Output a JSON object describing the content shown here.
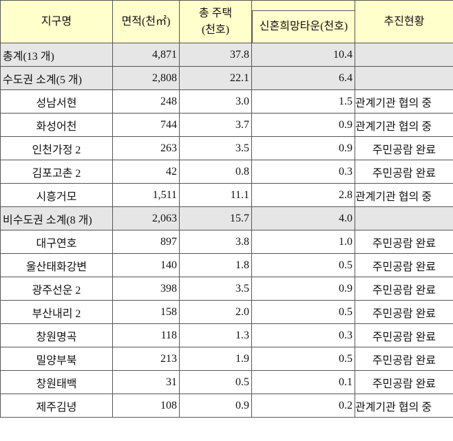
{
  "header": {
    "columns": [
      "지구명",
      "면적(천㎡)",
      [
        "총 주택",
        "(천호)"
      ],
      "신혼희망타운(천호)",
      "추진현황"
    ]
  },
  "table": {
    "rows": [
      [
        "총계(13 개)",
        "4,871",
        "37.8",
        "10.4"
      ],
      [
        "수도권 소계(5 개)",
        "2,808",
        "22.1",
        "6.4"
      ],
      [
        "성남서현",
        "248",
        "3.0",
        "1.5",
        "관계기관 협의 중"
      ],
      [
        "화성어천",
        "744",
        "3.7",
        "0.9",
        "관계기관 협의 중"
      ],
      [
        "인천가정 2",
        "263",
        "3.5",
        "0.9",
        "주민공람 완료"
      ],
      [
        "김포고촌 2",
        "42",
        "0.8",
        "0.3",
        "주민공람 완료"
      ],
      [
        "시흥거모",
        "1,511",
        "11.1",
        "2.8",
        "관계기관 협의 중"
      ],
      [
        "비수도권 소계(8 개)",
        "2,063",
        "15.7",
        "4.0"
      ],
      [
        "대구연호",
        "897",
        "3.8",
        "1.0",
        "주민공람 완료"
      ],
      [
        "울산태화강변",
        "140",
        "1.8",
        "0.5",
        "주민공람 완료"
      ],
      [
        "광주선운 2",
        "398",
        "3.5",
        "0.9",
        "주민공람 완료"
      ],
      [
        "부산내리 2",
        "158",
        "2.0",
        "0.5",
        "주민공람 완료"
      ],
      [
        "창원명곡",
        "118",
        "1.3",
        "0.3",
        "주민공람 완료"
      ],
      [
        "밀양부북",
        "213",
        "1.9",
        "0.5",
        "주민공람 완료"
      ],
      [
        "창원태백",
        "31",
        "0.5",
        "0.1",
        "주민공람 완료"
      ],
      [
        "제주김녕",
        "108",
        "0.9",
        "0.2",
        "관계기관 협의 중"
      ]
    ]
  }
}
